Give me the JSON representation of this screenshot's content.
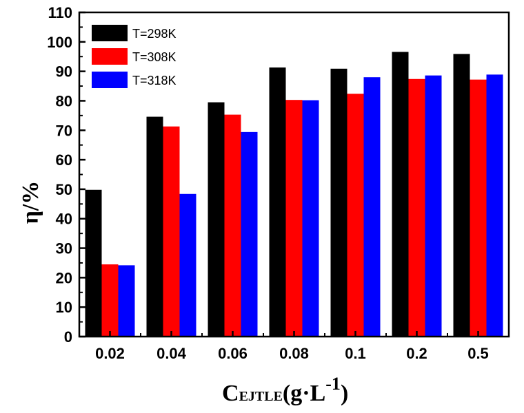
{
  "chart_data": {
    "type": "bar",
    "categories": [
      "0.02",
      "0.04",
      "0.06",
      "0.08",
      "0.1",
      "0.2",
      "0.5"
    ],
    "series": [
      {
        "name": "T=298K",
        "color": "#000000",
        "values": [
          49.8,
          74.6,
          79.5,
          91.3,
          90.9,
          96.6,
          95.9
        ]
      },
      {
        "name": "T=308K",
        "color": "#ff0000",
        "values": [
          24.5,
          71.3,
          75.3,
          80.3,
          82.4,
          87.4,
          87.2
        ]
      },
      {
        "name": "T=318K",
        "color": "#0000ff",
        "values": [
          24.2,
          48.4,
          69.4,
          80.2,
          88.0,
          88.6,
          88.9
        ]
      }
    ],
    "ylim": [
      0,
      110
    ],
    "yticks": [
      0,
      10,
      20,
      30,
      40,
      50,
      60,
      70,
      80,
      90,
      100,
      110
    ],
    "ylabel": "η/%",
    "xlabel": {
      "main": "C",
      "subscript": "EJTLE",
      "unit_open": "(g·L",
      "superscript": "-1",
      "unit_close": ")"
    },
    "legend_position": "top-left",
    "grid": false
  }
}
